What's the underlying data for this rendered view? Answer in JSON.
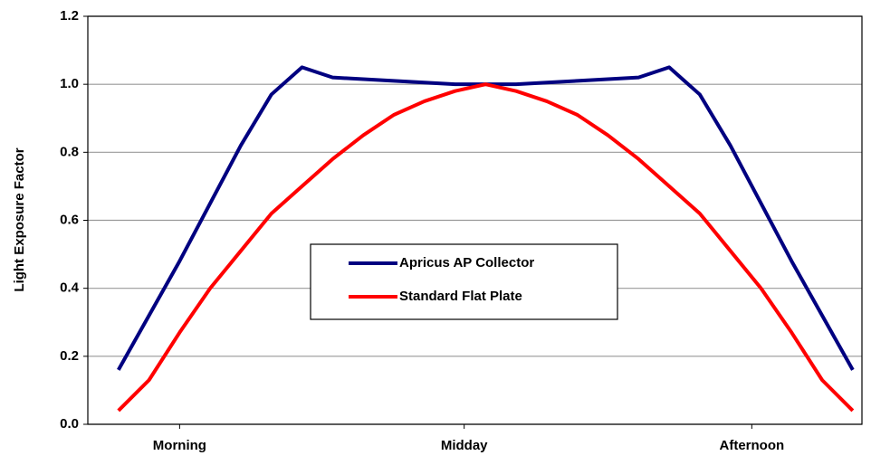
{
  "chart_data": {
    "type": "line",
    "y_label": "Light Exposure Factor",
    "x": [
      0,
      1,
      2,
      3,
      4,
      5,
      6,
      7,
      8,
      9,
      10,
      11,
      12,
      13,
      14,
      15,
      16,
      17,
      18,
      19,
      20,
      21,
      22,
      23,
      24
    ],
    "xlim": [
      -1,
      24.3
    ],
    "xticks": [
      {
        "value": 2,
        "label": "Morning"
      },
      {
        "value": 11.3,
        "label": "Midday"
      },
      {
        "value": 20.7,
        "label": "Afternoon"
      }
    ],
    "ylim": [
      0,
      1.2
    ],
    "yticks": [
      {
        "value": 0,
        "label": "0.0"
      },
      {
        "value": 0.2,
        "label": "0.2"
      },
      {
        "value": 0.4,
        "label": "0.4"
      },
      {
        "value": 0.6,
        "label": "0.6"
      },
      {
        "value": 0.8,
        "label": "0.8"
      },
      {
        "value": 1,
        "label": "1.0"
      },
      {
        "value": 1.2,
        "label": "1.2"
      }
    ],
    "grid": true,
    "legend": "center",
    "series": [
      {
        "name": "Apricus AP Collector",
        "color": "#000080",
        "values": [
          0.16,
          0.32,
          0.48,
          0.65,
          0.82,
          0.97,
          1.05,
          1.02,
          1.015,
          1.01,
          1.005,
          1.0,
          1.0,
          1.0,
          1.005,
          1.01,
          1.015,
          1.02,
          1.05,
          0.97,
          0.82,
          0.65,
          0.48,
          0.32,
          0.16
        ]
      },
      {
        "name": "Standard Flat Plate",
        "color": "#ff0000",
        "values": [
          0.04,
          0.13,
          0.27,
          0.4,
          0.51,
          0.62,
          0.7,
          0.78,
          0.85,
          0.91,
          0.95,
          0.98,
          1.0,
          0.98,
          0.95,
          0.91,
          0.85,
          0.78,
          0.7,
          0.62,
          0.51,
          0.4,
          0.27,
          0.13,
          0.04
        ]
      }
    ]
  }
}
